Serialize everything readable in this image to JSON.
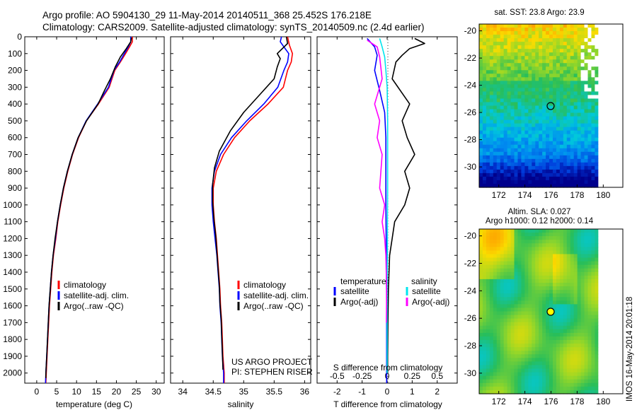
{
  "header": {
    "line1": "Argo profile: AO 5904130_29 11-May-2014 20140511_368 25.452S 176.218E",
    "line2": "Climatology: CARS2009. Satellite-adjusted climatology: synTS_20140509.nc (2.4d earlier)"
  },
  "colors": {
    "climatology": "#ff0000",
    "satellite": "#0000ff",
    "argo": "#000000",
    "sat_sal": "#00e5ee",
    "argo_sal": "#ff00ff"
  },
  "chart_data": [
    {
      "type": "line",
      "id": "temperature",
      "xlabel": "temperature (deg C)",
      "ylabel": "",
      "xlim": [
        -3,
        32
      ],
      "ylim": [
        2060,
        0
      ],
      "xticks": [
        0,
        5,
        10,
        15,
        20,
        25,
        30
      ],
      "yticks": [
        0,
        100,
        200,
        300,
        400,
        500,
        600,
        700,
        800,
        900,
        1000,
        1100,
        1200,
        1300,
        1400,
        1500,
        1600,
        1700,
        1800,
        1900,
        2000
      ],
      "legend": [
        "climatology",
        "satellite-adj. clim.",
        "Argo(..raw -QC)"
      ],
      "series": [
        {
          "name": "climatology",
          "color": "#ff0000",
          "points": [
            [
              24,
              0
            ],
            [
              24,
              30
            ],
            [
              23.3,
              60
            ],
            [
              22.3,
              100
            ],
            [
              21,
              150
            ],
            [
              19.6,
              200
            ],
            [
              18.2,
              300
            ],
            [
              15.5,
              400
            ],
            [
              12.5,
              500
            ],
            [
              10.5,
              600
            ],
            [
              9,
              700
            ],
            [
              7.8,
              800
            ],
            [
              6.8,
              900
            ],
            [
              6,
              1000
            ],
            [
              5.3,
              1100
            ],
            [
              4.8,
              1200
            ],
            [
              4.2,
              1300
            ],
            [
              3.8,
              1400
            ],
            [
              3.5,
              1500
            ],
            [
              3.2,
              1600
            ],
            [
              3,
              1700
            ],
            [
              2.8,
              1800
            ],
            [
              2.6,
              1900
            ],
            [
              2.4,
              2000
            ],
            [
              2.3,
              2060
            ]
          ]
        },
        {
          "name": "satellite-adj. clim.",
          "color": "#0000ff",
          "points": [
            [
              23.6,
              0
            ],
            [
              23.6,
              30
            ],
            [
              23,
              60
            ],
            [
              22,
              100
            ],
            [
              20.8,
              150
            ],
            [
              19.4,
              200
            ],
            [
              18,
              300
            ],
            [
              15.3,
              400
            ],
            [
              12.4,
              500
            ],
            [
              10.4,
              600
            ],
            [
              8.9,
              700
            ],
            [
              7.7,
              800
            ],
            [
              6.7,
              900
            ],
            [
              5.9,
              1000
            ],
            [
              5.2,
              1100
            ],
            [
              4.7,
              1200
            ],
            [
              4.1,
              1300
            ],
            [
              3.7,
              1400
            ],
            [
              3.4,
              1500
            ],
            [
              3.1,
              1600
            ],
            [
              2.9,
              1700
            ],
            [
              2.7,
              1800
            ],
            [
              2.5,
              1900
            ],
            [
              2.3,
              2000
            ],
            [
              2.2,
              2060
            ]
          ]
        },
        {
          "name": "Argo(..raw -QC)",
          "color": "#000000",
          "points": [
            [
              23.8,
              5
            ],
            [
              23.6,
              30
            ],
            [
              22.5,
              70
            ],
            [
              21,
              120
            ],
            [
              19.7,
              180
            ],
            [
              18.5,
              250
            ],
            [
              17,
              320
            ],
            [
              15.4,
              400
            ],
            [
              12.5,
              500
            ],
            [
              10.4,
              600
            ],
            [
              8.9,
              700
            ],
            [
              7.7,
              800
            ],
            [
              6.7,
              900
            ],
            [
              5.9,
              1000
            ],
            [
              5.2,
              1100
            ],
            [
              4.6,
              1200
            ],
            [
              4.1,
              1300
            ],
            [
              3.7,
              1400
            ],
            [
              3.4,
              1500
            ],
            [
              3.1,
              1600
            ],
            [
              2.9,
              1700
            ],
            [
              2.7,
              1800
            ],
            [
              2.5,
              1900
            ],
            [
              2.3,
              2000
            ],
            [
              2.3,
              2030
            ]
          ]
        }
      ]
    },
    {
      "type": "line",
      "id": "salinity",
      "xlabel": "salinity",
      "ylabel": "",
      "xlim": [
        33.8,
        36.1
      ],
      "ylim": [
        2060,
        0
      ],
      "xticks": [
        34,
        34.5,
        35,
        35.5,
        36
      ],
      "legend": [
        "climatology",
        "satellite-adj. clim.",
        "Argo(..raw -QC)"
      ],
      "annotations": [
        "US ARGO PROJECT",
        "PI: STEPHEN RISER"
      ],
      "series": [
        {
          "name": "climatology",
          "color": "#ff0000",
          "points": [
            [
              35.72,
              0
            ],
            [
              35.75,
              50
            ],
            [
              35.8,
              100
            ],
            [
              35.78,
              150
            ],
            [
              35.72,
              200
            ],
            [
              35.65,
              300
            ],
            [
              35.4,
              400
            ],
            [
              35.1,
              500
            ],
            [
              34.85,
              600
            ],
            [
              34.67,
              700
            ],
            [
              34.55,
              800
            ],
            [
              34.5,
              900
            ],
            [
              34.5,
              1000
            ],
            [
              34.52,
              1100
            ],
            [
              34.55,
              1200
            ],
            [
              34.57,
              1300
            ],
            [
              34.59,
              1400
            ],
            [
              34.61,
              1500
            ],
            [
              34.62,
              1600
            ],
            [
              34.64,
              1700
            ],
            [
              34.65,
              1800
            ],
            [
              34.66,
              1900
            ],
            [
              34.68,
              2000
            ],
            [
              34.68,
              2060
            ]
          ]
        },
        {
          "name": "satellite-adj. clim.",
          "color": "#0000ff",
          "points": [
            [
              35.62,
              0
            ],
            [
              35.6,
              30
            ],
            [
              35.66,
              60
            ],
            [
              35.74,
              100
            ],
            [
              35.72,
              150
            ],
            [
              35.66,
              200
            ],
            [
              35.56,
              300
            ],
            [
              35.33,
              400
            ],
            [
              35.05,
              500
            ],
            [
              34.8,
              600
            ],
            [
              34.62,
              700
            ],
            [
              34.52,
              800
            ],
            [
              34.48,
              900
            ],
            [
              34.48,
              1000
            ],
            [
              34.5,
              1100
            ],
            [
              34.53,
              1200
            ],
            [
              34.56,
              1300
            ],
            [
              34.58,
              1400
            ],
            [
              34.6,
              1500
            ],
            [
              34.61,
              1600
            ],
            [
              34.63,
              1700
            ],
            [
              34.64,
              1800
            ],
            [
              34.65,
              1900
            ],
            [
              34.67,
              2000
            ],
            [
              34.67,
              2060
            ]
          ]
        },
        {
          "name": "Argo(..raw -QC)",
          "color": "#000000",
          "points": [
            [
              35.7,
              0
            ],
            [
              35.72,
              40
            ],
            [
              35.55,
              100
            ],
            [
              35.6,
              130
            ],
            [
              35.55,
              180
            ],
            [
              35.5,
              250
            ],
            [
              35.3,
              330
            ],
            [
              35,
              450
            ],
            [
              34.78,
              560
            ],
            [
              34.6,
              680
            ],
            [
              34.52,
              780
            ],
            [
              34.49,
              880
            ],
            [
              34.49,
              980
            ],
            [
              34.51,
              1080
            ],
            [
              34.54,
              1180
            ],
            [
              34.56,
              1280
            ],
            [
              34.58,
              1380
            ],
            [
              34.6,
              1480
            ],
            [
              34.61,
              1580
            ],
            [
              34.63,
              1680
            ],
            [
              34.64,
              1780
            ],
            [
              34.65,
              1880
            ],
            [
              34.66,
              1980
            ]
          ]
        }
      ]
    },
    {
      "type": "line",
      "id": "differences",
      "xlabel": "T difference from climatology",
      "xlabel_top": "S difference from climatology",
      "xlim": [
        -2.8,
        2.8
      ],
      "ylim": [
        2060,
        0
      ],
      "xticks_bottom": [
        -2,
        -1,
        0,
        1,
        2
      ],
      "xticks_top": [
        {
          "label": "-0.5",
          "t": -2
        },
        {
          "label": "-0.25",
          "t": -1
        },
        {
          "label": "0",
          "t": 0
        },
        {
          "label": "0.25",
          "t": 1
        },
        {
          "label": "0.5",
          "t": 2
        }
      ],
      "legend_left_title": "temperature",
      "legend_right_title": "salinity",
      "legend": [
        "satellite",
        "Argo(-adj)",
        "satellite",
        "Argo(-adj)"
      ],
      "series": [
        {
          "name": "temperature satellite",
          "color": "#0000ff",
          "points": [
            [
              -0.8,
              10
            ],
            [
              -0.5,
              60
            ],
            [
              -0.4,
              110
            ],
            [
              -0.5,
              200
            ],
            [
              -0.3,
              320
            ],
            [
              -0.1,
              450
            ],
            [
              -0.05,
              600
            ],
            [
              -0.05,
              800
            ],
            [
              -0.05,
              1000
            ],
            [
              -0.04,
              1200
            ],
            [
              -0.03,
              1400
            ],
            [
              -0.02,
              1600
            ],
            [
              -0.02,
              1800
            ],
            [
              -0.02,
              2000
            ],
            [
              -0.02,
              2060
            ]
          ]
        },
        {
          "name": "temperature Argo(-adj)",
          "color": "#000000",
          "points": [
            [
              1.1,
              10
            ],
            [
              1.5,
              40
            ],
            [
              0.9,
              70
            ],
            [
              0.6,
              110
            ],
            [
              0.35,
              150
            ],
            [
              0.2,
              250
            ],
            [
              0.9,
              400
            ],
            [
              0.6,
              500
            ],
            [
              0.8,
              600
            ],
            [
              1.1,
              700
            ],
            [
              0.7,
              800
            ],
            [
              0.9,
              900
            ],
            [
              0.7,
              1000
            ],
            [
              0.3,
              1100
            ],
            [
              0.2,
              1200
            ],
            [
              0.1,
              1300
            ],
            [
              0.05,
              1500
            ],
            [
              0.03,
              1700
            ],
            [
              0.02,
              1900
            ],
            [
              0.02,
              2000
            ]
          ]
        },
        {
          "name": "salinity satellite",
          "color": "#00e5ee",
          "points": [
            [
              -0.3,
              10
            ],
            [
              -0.2,
              60
            ],
            [
              -0.1,
              120
            ],
            [
              -0.05,
              200
            ],
            [
              0,
              300
            ],
            [
              0.02,
              500
            ],
            [
              0.02,
              700
            ],
            [
              0.02,
              900
            ],
            [
              0.01,
              1100
            ],
            [
              0.01,
              1300
            ],
            [
              0,
              1500
            ],
            [
              0,
              1700
            ],
            [
              0,
              1900
            ],
            [
              0,
              2000
            ]
          ]
        },
        {
          "name": "salinity Argo(-adj)",
          "color": "#ff00ff",
          "points": [
            [
              -0.8,
              20
            ],
            [
              -0.4,
              60
            ],
            [
              -0.3,
              120
            ],
            [
              -0.2,
              250
            ],
            [
              -0.5,
              400
            ],
            [
              -0.3,
              500
            ],
            [
              -0.4,
              600
            ],
            [
              -0.2,
              700
            ],
            [
              -0.3,
              900
            ],
            [
              -0.1,
              1000
            ],
            [
              -0.2,
              1100
            ],
            [
              -0.1,
              1200
            ],
            [
              -0.05,
              1300
            ],
            [
              -0.02,
              1500
            ],
            [
              -0.03,
              1700
            ]
          ]
        }
      ]
    },
    {
      "type": "heatmap",
      "id": "sst",
      "title": "sat. SST: 23.8 Argo: 23.9",
      "xlim": [
        170.5,
        181.5
      ],
      "ylim": [
        -31.5,
        -19.5
      ],
      "xticks": [
        172,
        174,
        176,
        178,
        180
      ],
      "yticks": [
        -20,
        -22,
        -24,
        -26,
        -28,
        -30
      ],
      "marker": [
        176.2,
        -25.5
      ]
    },
    {
      "type": "heatmap",
      "id": "sla",
      "title": "Altim. SLA: 0.027",
      "subtitle": "Argo h1000: 0.12 h2000: 0.14",
      "xlim": [
        170.5,
        181.5
      ],
      "ylim": [
        -31.5,
        -19.5
      ],
      "xticks": [
        172,
        174,
        176,
        178,
        180
      ],
      "yticks": [
        -20,
        -22,
        -24,
        -26,
        -28,
        -30
      ],
      "marker": [
        176.2,
        -25.5
      ]
    }
  ],
  "footer": {
    "stamp": "IMOS 16-May-2014 20:01:18"
  }
}
